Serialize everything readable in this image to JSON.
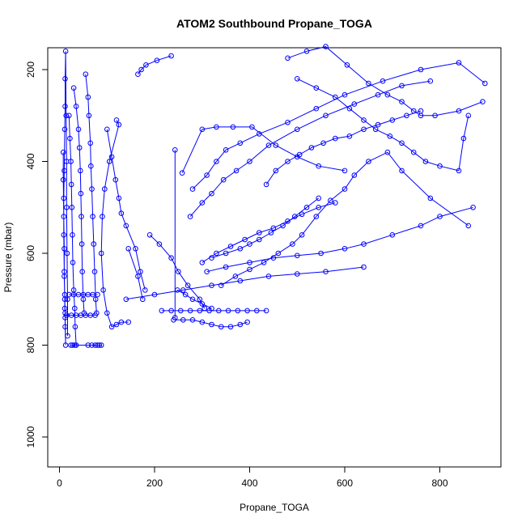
{
  "chart_data": {
    "type": "scatter",
    "title": "ATOM2 Southbound Propane_TOGA",
    "xlabel": "Propane_TOGA",
    "ylabel": "Pressure (mbar)",
    "xlim": [
      0,
      900
    ],
    "ylim": [
      1060,
      160
    ],
    "y_reversed": true,
    "x_ticks": [
      0,
      200,
      400,
      600,
      800
    ],
    "y_ticks": [
      200,
      400,
      600,
      800,
      1000
    ],
    "grid": false,
    "legend": "none",
    "marker": "open-circle",
    "connected": true,
    "color": "#0000ff",
    "series": [
      {
        "points": [
          [
            8,
            380
          ],
          [
            8,
            440
          ],
          [
            9,
            520
          ],
          [
            10,
            590
          ],
          [
            10,
            650
          ],
          [
            11,
            700
          ],
          [
            11,
            720
          ],
          [
            12,
            730
          ],
          [
            12,
            760
          ],
          [
            13,
            800
          ],
          [
            12,
            740
          ],
          [
            11,
            690
          ],
          [
            10,
            640
          ],
          [
            9,
            560
          ],
          [
            9,
            480
          ],
          [
            10,
            420
          ],
          [
            11,
            330
          ],
          [
            12,
            280
          ],
          [
            12,
            220
          ],
          [
            13,
            160
          ],
          [
            14,
            300
          ],
          [
            15,
            400
          ],
          [
            15,
            500
          ],
          [
            16,
            600
          ],
          [
            17,
            700
          ],
          [
            17,
            780
          ]
        ]
      },
      {
        "points": [
          [
            20,
            300
          ],
          [
            22,
            350
          ],
          [
            24,
            400
          ],
          [
            25,
            450
          ],
          [
            26,
            500
          ],
          [
            27,
            560
          ],
          [
            28,
            620
          ],
          [
            30,
            680
          ],
          [
            32,
            720
          ],
          [
            33,
            760
          ],
          [
            35,
            800
          ]
        ]
      },
      {
        "points": [
          [
            30,
            240
          ],
          [
            35,
            280
          ],
          [
            40,
            330
          ],
          [
            42,
            370
          ],
          [
            44,
            420
          ],
          [
            45,
            470
          ],
          [
            46,
            520
          ],
          [
            47,
            580
          ],
          [
            48,
            640
          ],
          [
            50,
            700
          ],
          [
            52,
            730
          ]
        ]
      },
      {
        "points": [
          [
            55,
            210
          ],
          [
            60,
            260
          ],
          [
            62,
            300
          ],
          [
            65,
            360
          ],
          [
            66,
            410
          ],
          [
            68,
            460
          ],
          [
            70,
            520
          ],
          [
            72,
            580
          ],
          [
            74,
            640
          ],
          [
            76,
            700
          ],
          [
            78,
            730
          ]
        ]
      },
      {
        "points": [
          [
            24,
            800
          ],
          [
            28,
            800
          ],
          [
            32,
            800
          ],
          [
            60,
            800
          ],
          [
            68,
            800
          ],
          [
            75,
            800
          ],
          [
            80,
            800
          ],
          [
            84,
            800
          ],
          [
            88,
            800
          ]
        ]
      },
      {
        "points": [
          [
            15,
            735
          ],
          [
            25,
            735
          ],
          [
            35,
            735
          ],
          [
            45,
            735
          ],
          [
            55,
            735
          ],
          [
            65,
            735
          ],
          [
            75,
            735
          ]
        ]
      },
      {
        "points": [
          [
            20,
            690
          ],
          [
            30,
            690
          ],
          [
            40,
            690
          ],
          [
            50,
            690
          ],
          [
            60,
            690
          ],
          [
            70,
            690
          ],
          [
            80,
            690
          ]
        ]
      },
      {
        "points": [
          [
            100,
            330
          ],
          [
            110,
            390
          ],
          [
            118,
            440
          ],
          [
            125,
            480
          ],
          [
            130,
            513
          ],
          [
            140,
            540
          ],
          [
            160,
            590
          ],
          [
            170,
            640
          ],
          [
            180,
            680
          ]
        ]
      },
      {
        "points": [
          [
            120,
            310
          ],
          [
            125,
            320
          ],
          [
            105,
            400
          ],
          [
            95,
            460
          ],
          [
            90,
            520
          ],
          [
            88,
            600
          ],
          [
            92,
            680
          ],
          [
            100,
            730
          ],
          [
            110,
            760
          ],
          [
            120,
            755
          ],
          [
            130,
            750
          ],
          [
            145,
            750
          ]
        ]
      },
      {
        "points": [
          [
            165,
            210
          ],
          [
            172,
            200
          ],
          [
            182,
            190
          ],
          [
            205,
            180
          ],
          [
            235,
            170
          ]
        ]
      },
      {
        "points": [
          [
            145,
            590
          ],
          [
            165,
            650
          ],
          [
            175,
            700
          ]
        ]
      },
      {
        "points": [
          [
            190,
            560
          ],
          [
            210,
            580
          ],
          [
            235,
            610
          ],
          [
            250,
            640
          ],
          [
            270,
            670
          ],
          [
            295,
            700
          ],
          [
            305,
            720
          ]
        ]
      },
      {
        "points": [
          [
            215,
            725
          ],
          [
            235,
            725
          ],
          [
            255,
            725
          ],
          [
            275,
            725
          ],
          [
            295,
            725
          ],
          [
            315,
            725
          ],
          [
            335,
            725
          ],
          [
            355,
            725
          ],
          [
            375,
            725
          ],
          [
            395,
            725
          ],
          [
            415,
            725
          ],
          [
            435,
            725
          ]
        ]
      },
      {
        "points": [
          [
            240,
            745
          ],
          [
            260,
            745
          ],
          [
            280,
            745
          ],
          [
            300,
            750
          ],
          [
            320,
            755
          ],
          [
            340,
            760
          ],
          [
            360,
            760
          ],
          [
            380,
            755
          ],
          [
            395,
            750
          ]
        ]
      },
      {
        "points": [
          [
            243,
            375
          ],
          [
            243,
            740
          ]
        ]
      },
      {
        "points": [
          [
            248,
            680
          ],
          [
            265,
            690
          ],
          [
            280,
            700
          ],
          [
            300,
            710
          ],
          [
            320,
            720
          ]
        ]
      },
      {
        "points": [
          [
            258,
            425
          ],
          [
            300,
            330
          ],
          [
            330,
            325
          ],
          [
            365,
            325
          ],
          [
            405,
            325
          ],
          [
            455,
            365
          ],
          [
            500,
            390
          ],
          [
            545,
            410
          ],
          [
            600,
            420
          ]
        ]
      },
      {
        "points": [
          [
            280,
            460
          ],
          [
            310,
            430
          ],
          [
            330,
            400
          ],
          [
            350,
            375
          ],
          [
            380,
            360
          ],
          [
            420,
            340
          ],
          [
            480,
            315
          ],
          [
            540,
            285
          ],
          [
            600,
            255
          ],
          [
            680,
            225
          ],
          [
            760,
            200
          ],
          [
            840,
            185
          ],
          [
            895,
            230
          ]
        ]
      },
      {
        "points": [
          [
            275,
            520
          ],
          [
            300,
            490
          ],
          [
            320,
            470
          ],
          [
            345,
            440
          ],
          [
            372,
            420
          ],
          [
            400,
            400
          ],
          [
            440,
            365
          ],
          [
            500,
            330
          ],
          [
            560,
            300
          ],
          [
            620,
            275
          ],
          [
            670,
            255
          ],
          [
            720,
            235
          ],
          [
            780,
            225
          ]
        ]
      },
      {
        "points": [
          [
            300,
            620
          ],
          [
            330,
            600
          ],
          [
            360,
            585
          ],
          [
            390,
            570
          ],
          [
            420,
            555
          ],
          [
            450,
            545
          ],
          [
            480,
            530
          ],
          [
            510,
            515
          ],
          [
            545,
            500
          ],
          [
            580,
            490
          ]
        ]
      },
      {
        "points": [
          [
            310,
            640
          ],
          [
            350,
            630
          ],
          [
            400,
            620
          ],
          [
            450,
            610
          ],
          [
            500,
            605
          ],
          [
            550,
            600
          ],
          [
            600,
            590
          ],
          [
            640,
            580
          ],
          [
            700,
            560
          ],
          [
            760,
            540
          ],
          [
            800,
            520
          ],
          [
            870,
            500
          ]
        ]
      },
      {
        "points": [
          [
            140,
            700
          ],
          [
            200,
            690
          ],
          [
            260,
            680
          ],
          [
            320,
            670
          ],
          [
            380,
            660
          ],
          [
            440,
            650
          ],
          [
            500,
            645
          ],
          [
            560,
            640
          ],
          [
            640,
            630
          ]
        ]
      },
      {
        "points": [
          [
            435,
            450
          ],
          [
            455,
            420
          ],
          [
            480,
            400
          ],
          [
            505,
            385
          ],
          [
            530,
            370
          ],
          [
            555,
            360
          ],
          [
            580,
            350
          ],
          [
            610,
            345
          ],
          [
            640,
            330
          ],
          [
            670,
            320
          ],
          [
            700,
            310
          ],
          [
            730,
            300
          ],
          [
            760,
            290
          ]
        ]
      },
      {
        "points": [
          [
            340,
            670
          ],
          [
            370,
            650
          ],
          [
            400,
            635
          ],
          [
            430,
            620
          ],
          [
            460,
            600
          ],
          [
            490,
            580
          ],
          [
            510,
            560
          ],
          [
            540,
            520
          ],
          [
            570,
            485
          ],
          [
            600,
            460
          ],
          [
            620,
            430
          ],
          [
            650,
            400
          ],
          [
            690,
            380
          ],
          [
            720,
            420
          ],
          [
            780,
            480
          ],
          [
            860,
            540
          ]
        ]
      },
      {
        "points": [
          [
            320,
            610
          ],
          [
            350,
            600
          ],
          [
            380,
            590
          ],
          [
            400,
            580
          ],
          [
            420,
            570
          ],
          [
            445,
            555
          ],
          [
            470,
            540
          ],
          [
            495,
            520
          ],
          [
            520,
            500
          ],
          [
            545,
            480
          ]
        ]
      },
      {
        "points": [
          [
            480,
            175
          ],
          [
            520,
            160
          ],
          [
            560,
            150
          ],
          [
            605,
            190
          ],
          [
            650,
            230
          ],
          [
            690,
            255
          ],
          [
            720,
            270
          ],
          [
            745,
            290
          ],
          [
            760,
            300
          ],
          [
            790,
            300
          ],
          [
            840,
            290
          ],
          [
            890,
            270
          ]
        ]
      },
      {
        "points": [
          [
            500,
            220
          ],
          [
            540,
            240
          ],
          [
            580,
            260
          ],
          [
            610,
            285
          ],
          [
            640,
            310
          ],
          [
            665,
            330
          ],
          [
            695,
            345
          ],
          [
            720,
            360
          ],
          [
            745,
            380
          ],
          [
            770,
            400
          ],
          [
            800,
            410
          ],
          [
            840,
            420
          ],
          [
            850,
            350
          ],
          [
            860,
            300
          ]
        ]
      }
    ]
  }
}
